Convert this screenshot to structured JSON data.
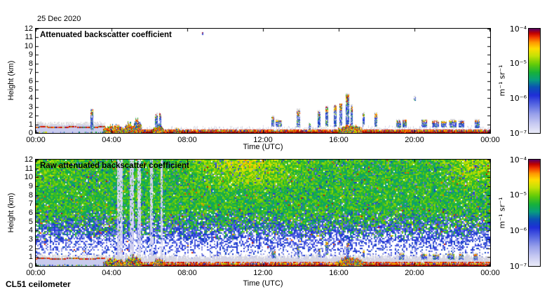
{
  "meta": {
    "date_label": "25 Dec 2020",
    "instrument_label": "CL51 ceilometer"
  },
  "palette": {
    "stops": [
      [
        0.0,
        "#eaeaf8"
      ],
      [
        0.09,
        "#c6c9f2"
      ],
      [
        0.18,
        "#98a0ea"
      ],
      [
        0.27,
        "#5868e2"
      ],
      [
        0.36,
        "#1f2ed8"
      ],
      [
        0.44,
        "#0a53b4"
      ],
      [
        0.51,
        "#089e7e"
      ],
      [
        0.58,
        "#17b13a"
      ],
      [
        0.66,
        "#63cb08"
      ],
      [
        0.74,
        "#c4e206"
      ],
      [
        0.81,
        "#fedd02"
      ],
      [
        0.87,
        "#fe9a01"
      ],
      [
        0.92,
        "#f23c00"
      ],
      [
        0.96,
        "#c00000"
      ],
      [
        1.0,
        "#5e005e"
      ]
    ],
    "gray_speckle": "#d9d9dd",
    "lavender": "#c9cbee"
  },
  "chart_data": [
    {
      "type": "heatmap",
      "panel": "attenuated",
      "title": "Attenuated backscatter coefficient",
      "xlabel": "Time (UTC)",
      "ylabel": "Height (km)",
      "x_range_hours": [
        0,
        24
      ],
      "x_ticks": [
        "00:00",
        "04:00",
        "08:00",
        "12:00",
        "16:00",
        "20:00",
        "00:00"
      ],
      "y_range_km": [
        0,
        12
      ],
      "y_ticks": [
        "12",
        "11",
        "10",
        "9",
        "8",
        "7",
        "6",
        "5",
        "4",
        "3",
        "2",
        "1",
        "0"
      ],
      "grid": false,
      "legend": false,
      "colorbar": {
        "position": "right",
        "scale": "log",
        "min": 1e-07,
        "max": 0.0001,
        "tick_labels": [
          "10⁻⁴",
          "10⁻⁵",
          "10⁻⁶",
          "10⁻⁷"
        ],
        "unit": "m⁻¹ sr⁻¹"
      },
      "features": {
        "seed": 7,
        "background_noise": false,
        "yellow_regions": [],
        "early_layer": {
          "t_end": 3.65,
          "top_km": 0.95,
          "line_km": 0.74
        },
        "surface_band": {
          "t_start": 3.6,
          "dark_red_top_km": 0.15,
          "speckle_top_km": 0.34,
          "gray_top_km": 0.7,
          "gray_density": 0.3,
          "red_line_km": 0.4
        },
        "events": [
          [
            3.55,
            4.65,
            0.95
          ],
          [
            4.65,
            5.15,
            1.3
          ],
          [
            5.15,
            5.6,
            1.55
          ],
          [
            6.2,
            6.75,
            1.0
          ],
          [
            7.25,
            7.65,
            0.6
          ],
          [
            15.95,
            17.25,
            1.0
          ]
        ],
        "clouds": [
          [
            2.95,
            2.75,
            0.5,
            0.05
          ],
          [
            5.3,
            1.75,
            0.7,
            0.05
          ],
          [
            6.35,
            2.25,
            0.8,
            0.06
          ],
          [
            6.55,
            2.3,
            0.9,
            0.05
          ],
          [
            12.5,
            1.95,
            0.9,
            0.07
          ],
          [
            12.8,
            1.55,
            0.85,
            0.15
          ],
          [
            13.85,
            2.7,
            0.8,
            0.06
          ],
          [
            14.45,
            1.15,
            0.6,
            0.04
          ],
          [
            14.95,
            2.55,
            0.8,
            0.05
          ],
          [
            15.35,
            3.1,
            0.9,
            0.05
          ],
          [
            15.8,
            3.25,
            0.9,
            0.06
          ],
          [
            16.1,
            3.4,
            1.0,
            0.05
          ],
          [
            16.45,
            4.5,
            1.1,
            0.08
          ],
          [
            16.68,
            3.2,
            1.0,
            0.04
          ],
          [
            17.3,
            2.3,
            0.9,
            0.05
          ],
          [
            17.95,
            2.35,
            0.9,
            0.05
          ],
          [
            19.15,
            1.5,
            0.75,
            0.1
          ],
          [
            19.45,
            1.55,
            0.8,
            0.09
          ],
          [
            20.5,
            1.55,
            0.8,
            0.13
          ],
          [
            21.1,
            1.45,
            0.8,
            0.17
          ],
          [
            21.55,
            1.4,
            0.8,
            0.13
          ],
          [
            22.0,
            1.5,
            0.8,
            0.17
          ],
          [
            22.45,
            1.45,
            0.8,
            0.13
          ],
          [
            23.3,
            1.55,
            0.7,
            0.11
          ],
          [
            20.0,
            4.15,
            3.85,
            0.02
          ],
          [
            8.8,
            11.65,
            11.4,
            0.02
          ]
        ],
        "streaks": []
      }
    },
    {
      "type": "heatmap",
      "panel": "raw",
      "title": "Raw attenuated backscatter coefficient",
      "xlabel": "Time (UTC)",
      "ylabel": "Height (km)",
      "x_range_hours": [
        0,
        24
      ],
      "x_ticks": [
        "00:00",
        "04:00",
        "08:00",
        "12:00",
        "16:00",
        "20:00",
        "00:00"
      ],
      "y_range_km": [
        0,
        12
      ],
      "y_ticks": [
        "12",
        "11",
        "10",
        "9",
        "8",
        "7",
        "6",
        "5",
        "4",
        "3",
        "2",
        "1",
        "0"
      ],
      "grid": false,
      "legend": false,
      "colorbar": {
        "position": "right",
        "scale": "log",
        "min": 1e-07,
        "max": 0.0001,
        "tick_labels": [
          "10⁻⁴",
          "10⁻⁵",
          "10⁻⁶",
          "10⁻⁷"
        ],
        "unit": "m⁻¹ sr⁻¹"
      },
      "features": {
        "seed": 13,
        "background_noise": true,
        "yellow_regions": [
          {
            "t_center": 11.0,
            "t_sigma": 2.4,
            "weight": 1.0
          },
          {
            "t_center": 23.2,
            "t_sigma": 1.5,
            "weight": 0.7
          },
          {
            "t_center": 0.6,
            "t_sigma": 1.2,
            "weight": 0.45
          }
        ],
        "early_layer": {
          "t_end": 3.65,
          "top_km": 0.95,
          "line_km": 0.9
        },
        "surface_band": {
          "t_start": 3.6,
          "dark_red_top_km": 0.18,
          "speckle_top_km": 0.32,
          "gray_top_km": 1.15,
          "gray_density": 0.8,
          "red_line_km": 0.45
        },
        "events": [
          [
            3.55,
            4.65,
            0.9
          ],
          [
            4.65,
            5.6,
            1.15
          ],
          [
            6.2,
            6.8,
            0.9
          ],
          [
            15.9,
            17.3,
            1.05
          ]
        ],
        "clouds": [
          [
            12.55,
            1.7,
            1.0,
            0.09
          ],
          [
            13.85,
            2.3,
            1.1,
            0.04
          ],
          [
            14.95,
            2.0,
            1.1,
            0.04
          ],
          [
            15.35,
            2.8,
            1.4,
            0.04
          ],
          [
            16.45,
            2.7,
            1.0,
            0.05
          ],
          [
            17.3,
            1.8,
            1.1,
            0.03
          ],
          [
            19.3,
            1.5,
            0.9,
            0.1
          ],
          [
            20.5,
            1.4,
            0.85,
            0.12
          ],
          [
            21.1,
            1.35,
            0.85,
            0.15
          ],
          [
            21.9,
            1.45,
            0.85,
            0.16
          ],
          [
            22.45,
            1.4,
            0.85,
            0.12
          ],
          [
            23.2,
            1.4,
            0.8,
            0.1
          ]
        ],
        "streaks": [
          [
            4.35,
            0.06
          ],
          [
            4.5,
            0.05
          ],
          [
            5.05,
            0.1
          ],
          [
            5.45,
            0.07
          ],
          [
            6.1,
            0.06
          ],
          [
            6.62,
            0.04
          ]
        ]
      }
    }
  ]
}
